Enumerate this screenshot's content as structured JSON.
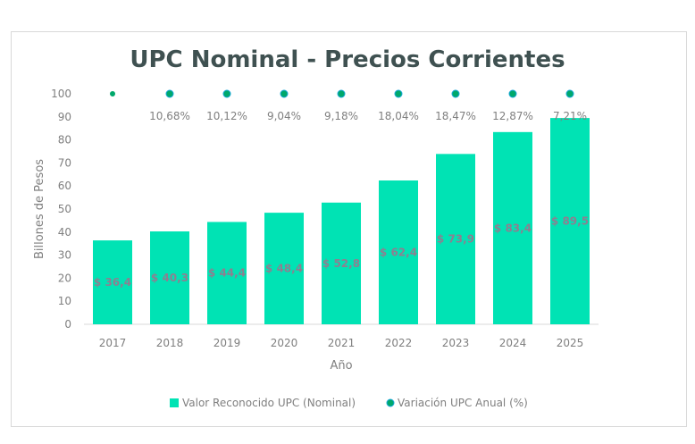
{
  "chart_data": {
    "type": "bar",
    "title": "UPC Nominal - Precios Corrientes",
    "xlabel": "Año",
    "ylabel": "Billones de Pesos",
    "ylim": [
      0,
      100
    ],
    "yticks": [
      0,
      10,
      20,
      30,
      40,
      50,
      60,
      70,
      80,
      90,
      100
    ],
    "categories": [
      "2017",
      "2018",
      "2019",
      "2020",
      "2021",
      "2022",
      "2023",
      "2024",
      "2025"
    ],
    "series": [
      {
        "name": "Valor Reconocido UPC (Nominal)",
        "type": "bar",
        "values": [
          36.4,
          40.3,
          44.4,
          48.4,
          52.8,
          62.4,
          73.9,
          83.4,
          89.5
        ],
        "labels": [
          "$ 36,4",
          "$ 40,3",
          "$ 44,4",
          "$ 48,4",
          "$ 52,8",
          "$ 62,4",
          "$ 73,9",
          "$ 83,4",
          "$ 89,5"
        ],
        "color": "#00e3b4"
      },
      {
        "name": "Variación UPC Anual (%)",
        "type": "scatter",
        "values": [
          null,
          10.68,
          10.12,
          9.04,
          9.18,
          18.04,
          18.47,
          12.87,
          7.21
        ],
        "labels": [
          "",
          "10,68%",
          "10,12%",
          "9,04%",
          "9,18%",
          "18,04%",
          "18,47%",
          "12,87%",
          "7,21%"
        ],
        "color": "#00a86b"
      }
    ],
    "grid": false,
    "legend": "bottom"
  }
}
